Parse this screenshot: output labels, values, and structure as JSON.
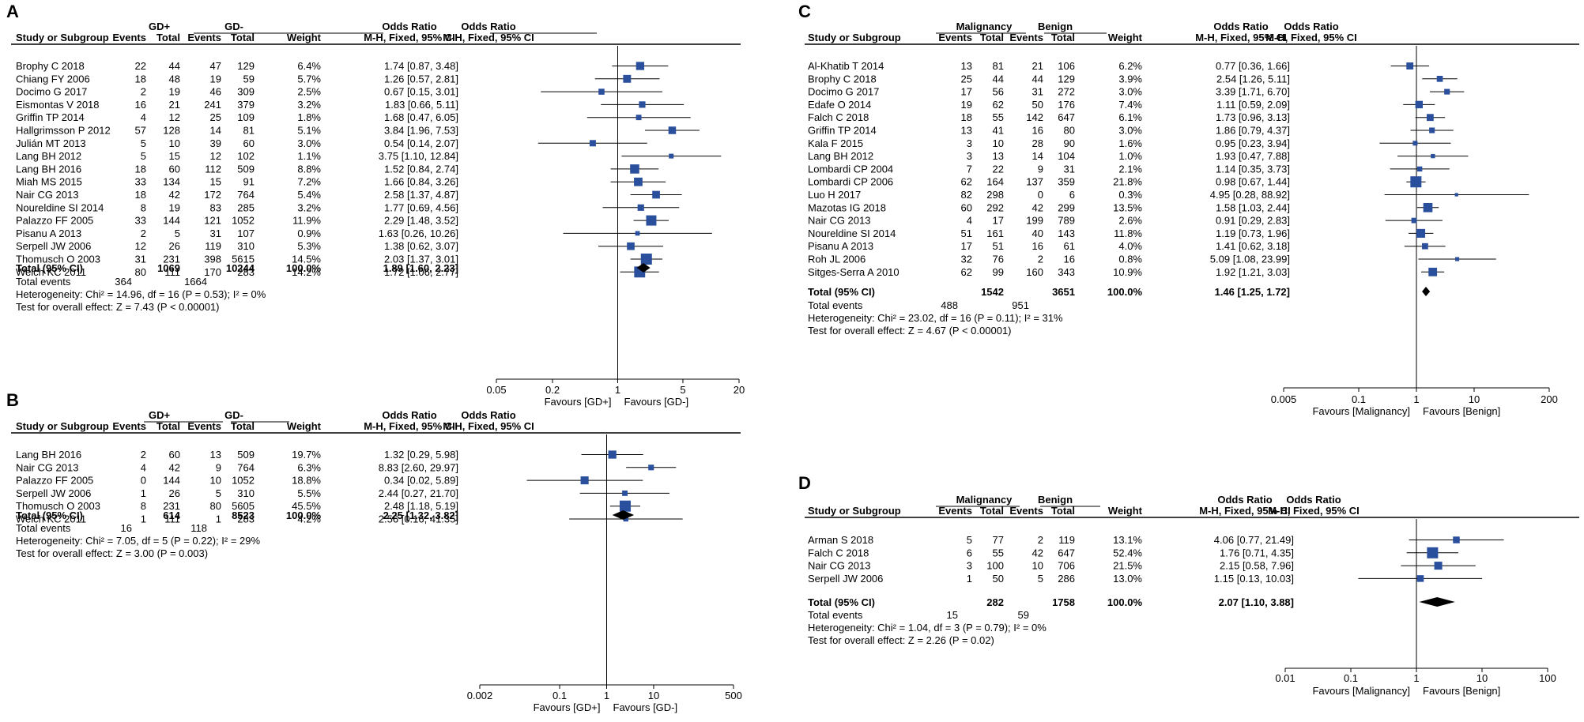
{
  "chart_data": [
    {
      "panel": "A",
      "type": "forest",
      "group1": "GD+",
      "group2": "GD-",
      "col_study": "Study or Subgroup",
      "col_events": "Events",
      "col_total": "Total",
      "col_weight": "Weight",
      "col_or": "Odds Ratio",
      "col_method": "M-H, Fixed, 95% CI",
      "plot_title": "Odds Ratio",
      "plot_method": "M-H, Fixed, 95% CI",
      "studies": [
        {
          "name": "Brophy C 2018",
          "e1": "22",
          "t1": "44",
          "e2": "47",
          "t2": "129",
          "w": "6.4%",
          "ci": "1.74 [0.87, 3.48]",
          "or": 1.74,
          "lo": 0.87,
          "hi": 3.48,
          "wt": 6.4
        },
        {
          "name": "Chiang FY 2006",
          "e1": "18",
          "t1": "48",
          "e2": "19",
          "t2": "59",
          "w": "5.7%",
          "ci": "1.26 [0.57, 2.81]",
          "or": 1.26,
          "lo": 0.57,
          "hi": 2.81,
          "wt": 5.7
        },
        {
          "name": "Docimo G 2017",
          "e1": "2",
          "t1": "19",
          "e2": "46",
          "t2": "309",
          "w": "2.5%",
          "ci": "0.67 [0.15, 3.01]",
          "or": 0.67,
          "lo": 0.15,
          "hi": 3.01,
          "wt": 2.5
        },
        {
          "name": "Eismontas V 2018",
          "e1": "16",
          "t1": "21",
          "e2": "241",
          "t2": "379",
          "w": "3.2%",
          "ci": "1.83 [0.66, 5.11]",
          "or": 1.83,
          "lo": 0.66,
          "hi": 5.11,
          "wt": 3.2
        },
        {
          "name": "Griffin TP 2014",
          "e1": "4",
          "t1": "12",
          "e2": "25",
          "t2": "109",
          "w": "1.8%",
          "ci": "1.68 [0.47, 6.05]",
          "or": 1.68,
          "lo": 0.47,
          "hi": 6.05,
          "wt": 1.8
        },
        {
          "name": "Hallgrimsson P 2012",
          "e1": "57",
          "t1": "128",
          "e2": "14",
          "t2": "81",
          "w": "5.1%",
          "ci": "3.84 [1.96, 7.53]",
          "or": 3.84,
          "lo": 1.96,
          "hi": 7.53,
          "wt": 5.1
        },
        {
          "name": "Julián MT 2013",
          "e1": "5",
          "t1": "10",
          "e2": "39",
          "t2": "60",
          "w": "3.0%",
          "ci": "0.54 [0.14, 2.07]",
          "or": 0.54,
          "lo": 0.14,
          "hi": 2.07,
          "wt": 3.0
        },
        {
          "name": "Lang BH 2012",
          "e1": "5",
          "t1": "15",
          "e2": "12",
          "t2": "102",
          "w": "1.1%",
          "ci": "3.75 [1.10, 12.84]",
          "or": 3.75,
          "lo": 1.1,
          "hi": 12.84,
          "wt": 1.1
        },
        {
          "name": "Lang BH 2016",
          "e1": "18",
          "t1": "60",
          "e2": "112",
          "t2": "509",
          "w": "8.8%",
          "ci": "1.52 [0.84, 2.74]",
          "or": 1.52,
          "lo": 0.84,
          "hi": 2.74,
          "wt": 8.8
        },
        {
          "name": "Miah MS 2015",
          "e1": "33",
          "t1": "134",
          "e2": "15",
          "t2": "91",
          "w": "7.2%",
          "ci": "1.66 [0.84, 3.26]",
          "or": 1.66,
          "lo": 0.84,
          "hi": 3.26,
          "wt": 7.2
        },
        {
          "name": "Nair CG 2013",
          "e1": "18",
          "t1": "42",
          "e2": "172",
          "t2": "764",
          "w": "5.4%",
          "ci": "2.58 [1.37, 4.87]",
          "or": 2.58,
          "lo": 1.37,
          "hi": 4.87,
          "wt": 5.4
        },
        {
          "name": "Noureldine SI 2014",
          "e1": "8",
          "t1": "19",
          "e2": "83",
          "t2": "285",
          "w": "3.2%",
          "ci": "1.77 [0.69, 4.56]",
          "or": 1.77,
          "lo": 0.69,
          "hi": 4.56,
          "wt": 3.2
        },
        {
          "name": "Palazzo FF 2005",
          "e1": "33",
          "t1": "144",
          "e2": "121",
          "t2": "1052",
          "w": "11.9%",
          "ci": "2.29 [1.48, 3.52]",
          "or": 2.29,
          "lo": 1.48,
          "hi": 3.52,
          "wt": 11.9
        },
        {
          "name": "Pisanu A 2013",
          "e1": "2",
          "t1": "5",
          "e2": "31",
          "t2": "107",
          "w": "0.9%",
          "ci": "1.63 [0.26, 10.26]",
          "or": 1.63,
          "lo": 0.26,
          "hi": 10.26,
          "wt": 0.9
        },
        {
          "name": "Serpell JW 2006",
          "e1": "12",
          "t1": "26",
          "e2": "119",
          "t2": "310",
          "w": "5.3%",
          "ci": "1.38 [0.62, 3.07]",
          "or": 1.38,
          "lo": 0.62,
          "hi": 3.07,
          "wt": 5.3
        },
        {
          "name": "Thomusch O 2003",
          "e1": "31",
          "t1": "231",
          "e2": "398",
          "t2": "5615",
          "w": "14.5%",
          "ci": "2.03 [1.37, 3.01]",
          "or": 2.03,
          "lo": 1.37,
          "hi": 3.01,
          "wt": 14.5
        },
        {
          "name": "Welch KC 2011",
          "e1": "80",
          "t1": "111",
          "e2": "170",
          "t2": "283",
          "w": "14.2%",
          "ci": "1.72 [1.06, 2.77]",
          "or": 1.72,
          "lo": 1.06,
          "hi": 2.77,
          "wt": 14.2
        }
      ],
      "total": {
        "label": "Total (95% CI)",
        "t1": "1069",
        "t2": "10244",
        "w": "100.0%",
        "ci": "1.89 [1.60, 2.23]",
        "or": 1.89,
        "lo": 1.6,
        "hi": 2.23
      },
      "events": {
        "label": "Total events",
        "e1": "364",
        "e2": "1664"
      },
      "heterogeneity": "Heterogeneity: Chi² = 14.96, df = 16 (P = 0.53); I² = 0%",
      "overall": "Test for overall effect: Z = 7.43 (P < 0.00001)",
      "axis_ticks": [
        "0.05",
        "0.2",
        "1",
        "5",
        "20"
      ],
      "axis_min": 0.05,
      "axis_max": 20,
      "favours_left": "Favours [GD+]",
      "favours_right": "Favours [GD-]"
    },
    {
      "panel": "B",
      "type": "forest",
      "group1": "GD+",
      "group2": "GD-",
      "col_study": "Study or Subgroup",
      "col_events": "Events",
      "col_total": "Total",
      "col_weight": "Weight",
      "col_or": "Odds Ratio",
      "col_method": "M-H, Fixed, 95% CI",
      "plot_title": "Odds Ratio",
      "plot_method": "M-H, Fixed, 95% CI",
      "studies": [
        {
          "name": "Lang BH 2016",
          "e1": "2",
          "t1": "60",
          "e2": "13",
          "t2": "509",
          "w": "19.7%",
          "ci": "1.32 [0.29, 5.98]",
          "or": 1.32,
          "lo": 0.29,
          "hi": 5.98,
          "wt": 19.7
        },
        {
          "name": "Nair CG 2013",
          "e1": "4",
          "t1": "42",
          "e2": "9",
          "t2": "764",
          "w": "6.3%",
          "ci": "8.83 [2.60, 29.97]",
          "or": 8.83,
          "lo": 2.6,
          "hi": 29.97,
          "wt": 6.3
        },
        {
          "name": "Palazzo FF 2005",
          "e1": "0",
          "t1": "144",
          "e2": "10",
          "t2": "1052",
          "w": "18.8%",
          "ci": "0.34 [0.02, 5.89]",
          "or": 0.34,
          "lo": 0.02,
          "hi": 5.89,
          "wt": 18.8
        },
        {
          "name": "Serpell JW 2006",
          "e1": "1",
          "t1": "26",
          "e2": "5",
          "t2": "310",
          "w": "5.5%",
          "ci": "2.44 [0.27, 21.70]",
          "or": 2.44,
          "lo": 0.27,
          "hi": 21.7,
          "wt": 5.5
        },
        {
          "name": "Thomusch O 2003",
          "e1": "8",
          "t1": "231",
          "e2": "80",
          "t2": "5605",
          "w": "45.5%",
          "ci": "2.48 [1.18, 5.19]",
          "or": 2.48,
          "lo": 1.18,
          "hi": 5.19,
          "wt": 45.5
        },
        {
          "name": "Welch KC 2011",
          "e1": "1",
          "t1": "111",
          "e2": "1",
          "t2": "283",
          "w": "4.2%",
          "ci": "2.56 [0.16, 41.35]",
          "or": 2.56,
          "lo": 0.16,
          "hi": 41.35,
          "wt": 4.2
        }
      ],
      "total": {
        "label": "Total (95% CI)",
        "t1": "614",
        "t2": "8523",
        "w": "100.0%",
        "ci": "2.25 [1.32, 3.82]",
        "or": 2.25,
        "lo": 1.32,
        "hi": 3.82
      },
      "events": {
        "label": "Total events",
        "e1": "16",
        "e2": "118"
      },
      "heterogeneity": "Heterogeneity: Chi² = 7.05, df = 5 (P = 0.22); I² = 29%",
      "overall": "Test for overall effect: Z = 3.00 (P = 0.003)",
      "axis_ticks": [
        "0.002",
        "0.1",
        "1",
        "10",
        "500"
      ],
      "axis_min": 0.002,
      "axis_max": 500,
      "favours_left": "Favours [GD+]",
      "favours_right": "Favours [GD-]"
    },
    {
      "panel": "C",
      "type": "forest",
      "group1": "Malignancy",
      "group2": "Benign",
      "col_study": "Study or Subgroup",
      "col_events": "Events",
      "col_total": "Total",
      "col_weight": "Weight",
      "col_or": "Odds Ratio",
      "col_method": "M-H, Fixed, 95% CI",
      "plot_title": "Odds Ratio",
      "plot_method": "M-H, Fixed, 95% CI",
      "studies": [
        {
          "name": "Al-Khatib T 2014",
          "e1": "13",
          "t1": "81",
          "e2": "21",
          "t2": "106",
          "w": "6.2%",
          "ci": "0.77 [0.36, 1.66]",
          "or": 0.77,
          "lo": 0.36,
          "hi": 1.66,
          "wt": 6.2
        },
        {
          "name": "Brophy C 2018",
          "e1": "25",
          "t1": "44",
          "e2": "44",
          "t2": "129",
          "w": "3.9%",
          "ci": "2.54 [1.26, 5.11]",
          "or": 2.54,
          "lo": 1.26,
          "hi": 5.11,
          "wt": 3.9
        },
        {
          "name": "Docimo G 2017",
          "e1": "17",
          "t1": "56",
          "e2": "31",
          "t2": "272",
          "w": "3.0%",
          "ci": "3.39 [1.71, 6.70]",
          "or": 3.39,
          "lo": 1.71,
          "hi": 6.7,
          "wt": 3.0
        },
        {
          "name": "Edafe O 2014",
          "e1": "19",
          "t1": "62",
          "e2": "50",
          "t2": "176",
          "w": "7.4%",
          "ci": "1.11 [0.59, 2.09]",
          "or": 1.11,
          "lo": 0.59,
          "hi": 2.09,
          "wt": 7.4
        },
        {
          "name": "Falch C 2018",
          "e1": "18",
          "t1": "55",
          "e2": "142",
          "t2": "647",
          "w": "6.1%",
          "ci": "1.73 [0.96, 3.13]",
          "or": 1.73,
          "lo": 0.96,
          "hi": 3.13,
          "wt": 6.1
        },
        {
          "name": "Griffin TP 2014",
          "e1": "13",
          "t1": "41",
          "e2": "16",
          "t2": "80",
          "w": "3.0%",
          "ci": "1.86 [0.79, 4.37]",
          "or": 1.86,
          "lo": 0.79,
          "hi": 4.37,
          "wt": 3.0
        },
        {
          "name": "Kala F 2015",
          "e1": "3",
          "t1": "10",
          "e2": "28",
          "t2": "90",
          "w": "1.6%",
          "ci": "0.95 [0.23, 3.94]",
          "or": 0.95,
          "lo": 0.23,
          "hi": 3.94,
          "wt": 1.6
        },
        {
          "name": "Lang BH 2012",
          "e1": "3",
          "t1": "13",
          "e2": "14",
          "t2": "104",
          "w": "1.0%",
          "ci": "1.93 [0.47, 7.88]",
          "or": 1.93,
          "lo": 0.47,
          "hi": 7.88,
          "wt": 1.0
        },
        {
          "name": "Lombardi CP 2004",
          "e1": "7",
          "t1": "22",
          "e2": "9",
          "t2": "31",
          "w": "2.1%",
          "ci": "1.14 [0.35, 3.73]",
          "or": 1.14,
          "lo": 0.35,
          "hi": 3.73,
          "wt": 2.1
        },
        {
          "name": "Lombardi CP 2006",
          "e1": "62",
          "t1": "164",
          "e2": "137",
          "t2": "359",
          "w": "21.8%",
          "ci": "0.98 [0.67, 1.44]",
          "or": 0.98,
          "lo": 0.67,
          "hi": 1.44,
          "wt": 21.8
        },
        {
          "name": "Luo H 2017",
          "e1": "82",
          "t1": "298",
          "e2": "0",
          "t2": "6",
          "w": "0.3%",
          "ci": "4.95 [0.28, 88.92]",
          "or": 4.95,
          "lo": 0.28,
          "hi": 88.92,
          "wt": 0.3
        },
        {
          "name": "Mazotas IG 2018",
          "e1": "60",
          "t1": "292",
          "e2": "42",
          "t2": "299",
          "w": "13.5%",
          "ci": "1.58 [1.03, 2.44]",
          "or": 1.58,
          "lo": 1.03,
          "hi": 2.44,
          "wt": 13.5
        },
        {
          "name": "Nair CG 2013",
          "e1": "4",
          "t1": "17",
          "e2": "199",
          "t2": "789",
          "w": "2.6%",
          "ci": "0.91 [0.29, 2.83]",
          "or": 0.91,
          "lo": 0.29,
          "hi": 2.83,
          "wt": 2.6
        },
        {
          "name": "Noureldine SI 2014",
          "e1": "51",
          "t1": "161",
          "e2": "40",
          "t2": "143",
          "w": "11.8%",
          "ci": "1.19 [0.73, 1.96]",
          "or": 1.19,
          "lo": 0.73,
          "hi": 1.96,
          "wt": 11.8
        },
        {
          "name": "Pisanu A 2013",
          "e1": "17",
          "t1": "51",
          "e2": "16",
          "t2": "61",
          "w": "4.0%",
          "ci": "1.41 [0.62, 3.18]",
          "or": 1.41,
          "lo": 0.62,
          "hi": 3.18,
          "wt": 4.0
        },
        {
          "name": "Roh JL 2006",
          "e1": "32",
          "t1": "76",
          "e2": "2",
          "t2": "16",
          "w": "0.8%",
          "ci": "5.09 [1.08, 23.99]",
          "or": 5.09,
          "lo": 1.08,
          "hi": 23.99,
          "wt": 0.8
        },
        {
          "name": "Sitges-Serra A 2010",
          "e1": "62",
          "t1": "99",
          "e2": "160",
          "t2": "343",
          "w": "10.9%",
          "ci": "1.92 [1.21, 3.03]",
          "or": 1.92,
          "lo": 1.21,
          "hi": 3.03,
          "wt": 10.9
        }
      ],
      "total": {
        "label": "Total (95% CI)",
        "t1": "1542",
        "t2": "3651",
        "w": "100.0%",
        "ci": "1.46 [1.25, 1.72]",
        "or": 1.46,
        "lo": 1.25,
        "hi": 1.72
      },
      "events": {
        "label": "Total events",
        "e1": "488",
        "e2": "951"
      },
      "heterogeneity": "Heterogeneity: Chi² = 23.02, df = 16 (P = 0.11); I² = 31%",
      "overall": "Test for overall effect: Z = 4.67 (P < 0.00001)",
      "axis_ticks": [
        "0.005",
        "0.1",
        "1",
        "10",
        "200"
      ],
      "axis_min": 0.005,
      "axis_max": 200,
      "favours_left": "Favours [Malignancy]",
      "favours_right": "Favours [Benign]"
    },
    {
      "panel": "D",
      "type": "forest",
      "group1": "Malignancy",
      "group2": "Benign",
      "col_study": "Study or Subgroup",
      "col_events": "Events",
      "col_total": "Total",
      "col_weight": "Weight",
      "col_or": "Odds Ratio",
      "col_method": "M-H, Fixed, 95% CI",
      "plot_title": "Odds Ratio",
      "plot_method": "M-H, Fixed, 95% CI",
      "studies": [
        {
          "name": "Arman S 2018",
          "e1": "5",
          "t1": "77",
          "e2": "2",
          "t2": "119",
          "w": "13.1%",
          "ci": "4.06 [0.77, 21.49]",
          "or": 4.06,
          "lo": 0.77,
          "hi": 21.49,
          "wt": 13.1
        },
        {
          "name": "Falch C 2018",
          "e1": "6",
          "t1": "55",
          "e2": "42",
          "t2": "647",
          "w": "52.4%",
          "ci": "1.76 [0.71, 4.35]",
          "or": 1.76,
          "lo": 0.71,
          "hi": 4.35,
          "wt": 52.4
        },
        {
          "name": "Nair CG 2013",
          "e1": "3",
          "t1": "100",
          "e2": "10",
          "t2": "706",
          "w": "21.5%",
          "ci": "2.15 [0.58, 7.96]",
          "or": 2.15,
          "lo": 0.58,
          "hi": 7.96,
          "wt": 21.5
        },
        {
          "name": "Serpell JW 2006",
          "e1": "1",
          "t1": "50",
          "e2": "5",
          "t2": "286",
          "w": "13.0%",
          "ci": "1.15 [0.13, 10.03]",
          "or": 1.15,
          "lo": 0.13,
          "hi": 10.03,
          "wt": 13.0
        }
      ],
      "total": {
        "label": "Total (95% CI)",
        "t1": "282",
        "t2": "1758",
        "w": "100.0%",
        "ci": "2.07 [1.10, 3.88]",
        "or": 2.07,
        "lo": 1.1,
        "hi": 3.88
      },
      "events": {
        "label": "Total events",
        "e1": "15",
        "e2": "59"
      },
      "heterogeneity": "Heterogeneity: Chi² = 1.04, df = 3 (P = 0.79); I² = 0%",
      "overall": "Test for overall effect: Z = 2.26 (P = 0.02)",
      "axis_ticks": [
        "0.01",
        "0.1",
        "1",
        "10",
        "100"
      ],
      "axis_min": 0.01,
      "axis_max": 100,
      "favours_left": "Favours [Malignancy]",
      "favours_right": "Favours [Benign]"
    }
  ],
  "colors": {
    "marker": "#2a4f9c",
    "text": "#000000",
    "line": "#000000"
  }
}
